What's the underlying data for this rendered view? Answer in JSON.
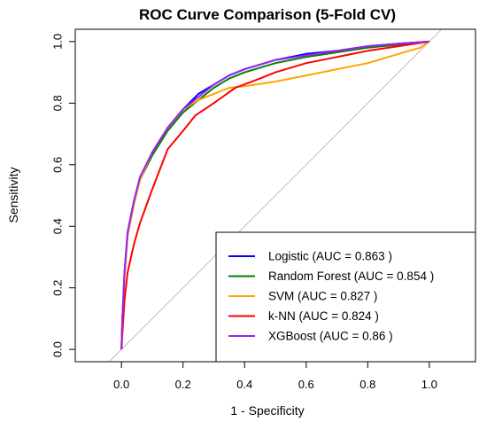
{
  "chart_data": {
    "type": "line",
    "title": "ROC Curve Comparison (5-Fold CV)",
    "xlabel": "1 - Specificity",
    "ylabel": "Sensitivity",
    "xlim": [
      -0.15,
      1.15
    ],
    "ylim": [
      -0.04,
      1.04
    ],
    "x_ticks": [
      0.0,
      0.2,
      0.4,
      0.6,
      0.8,
      1.0
    ],
    "y_ticks": [
      0.0,
      0.2,
      0.4,
      0.6,
      0.8,
      1.0
    ],
    "x_tick_labels": [
      "0.0",
      "0.2",
      "0.4",
      "0.6",
      "0.8",
      "1.0"
    ],
    "y_tick_labels": [
      "0.0",
      "0.2",
      "0.4",
      "0.6",
      "0.8",
      "1.0"
    ],
    "grid": false,
    "legend_position": "bottom-right",
    "reference_line": {
      "from": [
        -0.05,
        -0.05
      ],
      "to": [
        1.04,
        1.04
      ],
      "color": "#bebebe"
    },
    "series": [
      {
        "name": "Logistic (AUC = 0.863 )",
        "color": "#0000ff",
        "points": [
          [
            0,
            0
          ],
          [
            0.003,
            0.1
          ],
          [
            0.01,
            0.25
          ],
          [
            0.02,
            0.38
          ],
          [
            0.04,
            0.48
          ],
          [
            0.06,
            0.55
          ],
          [
            0.1,
            0.64
          ],
          [
            0.15,
            0.72
          ],
          [
            0.2,
            0.78
          ],
          [
            0.25,
            0.83
          ],
          [
            0.3,
            0.86
          ],
          [
            0.35,
            0.89
          ],
          [
            0.4,
            0.91
          ],
          [
            0.5,
            0.94
          ],
          [
            0.6,
            0.96
          ],
          [
            0.7,
            0.97
          ],
          [
            0.8,
            0.985
          ],
          [
            0.9,
            0.993
          ],
          [
            1,
            1
          ]
        ]
      },
      {
        "name": "Random Forest (AUC = 0.854 )",
        "color": "#008000",
        "points": [
          [
            0,
            0
          ],
          [
            0.003,
            0.1
          ],
          [
            0.01,
            0.24
          ],
          [
            0.02,
            0.37
          ],
          [
            0.04,
            0.47
          ],
          [
            0.06,
            0.55
          ],
          [
            0.1,
            0.63
          ],
          [
            0.15,
            0.71
          ],
          [
            0.2,
            0.77
          ],
          [
            0.25,
            0.81
          ],
          [
            0.3,
            0.85
          ],
          [
            0.35,
            0.88
          ],
          [
            0.4,
            0.9
          ],
          [
            0.5,
            0.93
          ],
          [
            0.6,
            0.95
          ],
          [
            0.7,
            0.965
          ],
          [
            0.8,
            0.98
          ],
          [
            0.9,
            0.99
          ],
          [
            1,
            1
          ]
        ]
      },
      {
        "name": "SVM (AUC = 0.827 )",
        "color": "#ffa500",
        "points": [
          [
            0,
            0
          ],
          [
            0.003,
            0.1
          ],
          [
            0.01,
            0.24
          ],
          [
            0.02,
            0.37
          ],
          [
            0.04,
            0.47
          ],
          [
            0.06,
            0.55
          ],
          [
            0.1,
            0.64
          ],
          [
            0.15,
            0.72
          ],
          [
            0.2,
            0.78
          ],
          [
            0.25,
            0.81
          ],
          [
            0.3,
            0.83
          ],
          [
            0.35,
            0.85
          ],
          [
            0.4,
            0.855
          ],
          [
            0.5,
            0.87
          ],
          [
            0.6,
            0.89
          ],
          [
            0.7,
            0.91
          ],
          [
            0.8,
            0.93
          ],
          [
            0.9,
            0.96
          ],
          [
            0.97,
            0.98
          ],
          [
            1,
            1
          ]
        ]
      },
      {
        "name": "k-NN (AUC = 0.824 )",
        "color": "#ff0000",
        "points": [
          [
            0,
            0
          ],
          [
            0.003,
            0.05
          ],
          [
            0.01,
            0.16
          ],
          [
            0.02,
            0.25
          ],
          [
            0.04,
            0.34
          ],
          [
            0.06,
            0.41
          ],
          [
            0.1,
            0.52
          ],
          [
            0.15,
            0.65
          ],
          [
            0.2,
            0.71
          ],
          [
            0.24,
            0.76
          ],
          [
            0.3,
            0.8
          ],
          [
            0.37,
            0.85
          ],
          [
            0.45,
            0.88
          ],
          [
            0.5,
            0.9
          ],
          [
            0.6,
            0.93
          ],
          [
            0.7,
            0.95
          ],
          [
            0.8,
            0.97
          ],
          [
            0.9,
            0.985
          ],
          [
            1,
            1
          ]
        ]
      },
      {
        "name": "XGBoost (AUC = 0.86 )",
        "color": "#a020f0",
        "points": [
          [
            0,
            0
          ],
          [
            0.003,
            0.1
          ],
          [
            0.01,
            0.25
          ],
          [
            0.02,
            0.38
          ],
          [
            0.04,
            0.48
          ],
          [
            0.06,
            0.56
          ],
          [
            0.1,
            0.64
          ],
          [
            0.15,
            0.72
          ],
          [
            0.2,
            0.78
          ],
          [
            0.25,
            0.82
          ],
          [
            0.3,
            0.86
          ],
          [
            0.35,
            0.89
          ],
          [
            0.4,
            0.91
          ],
          [
            0.5,
            0.94
          ],
          [
            0.6,
            0.955
          ],
          [
            0.7,
            0.97
          ],
          [
            0.8,
            0.985
          ],
          [
            0.9,
            0.993
          ],
          [
            1,
            1
          ]
        ]
      }
    ]
  }
}
